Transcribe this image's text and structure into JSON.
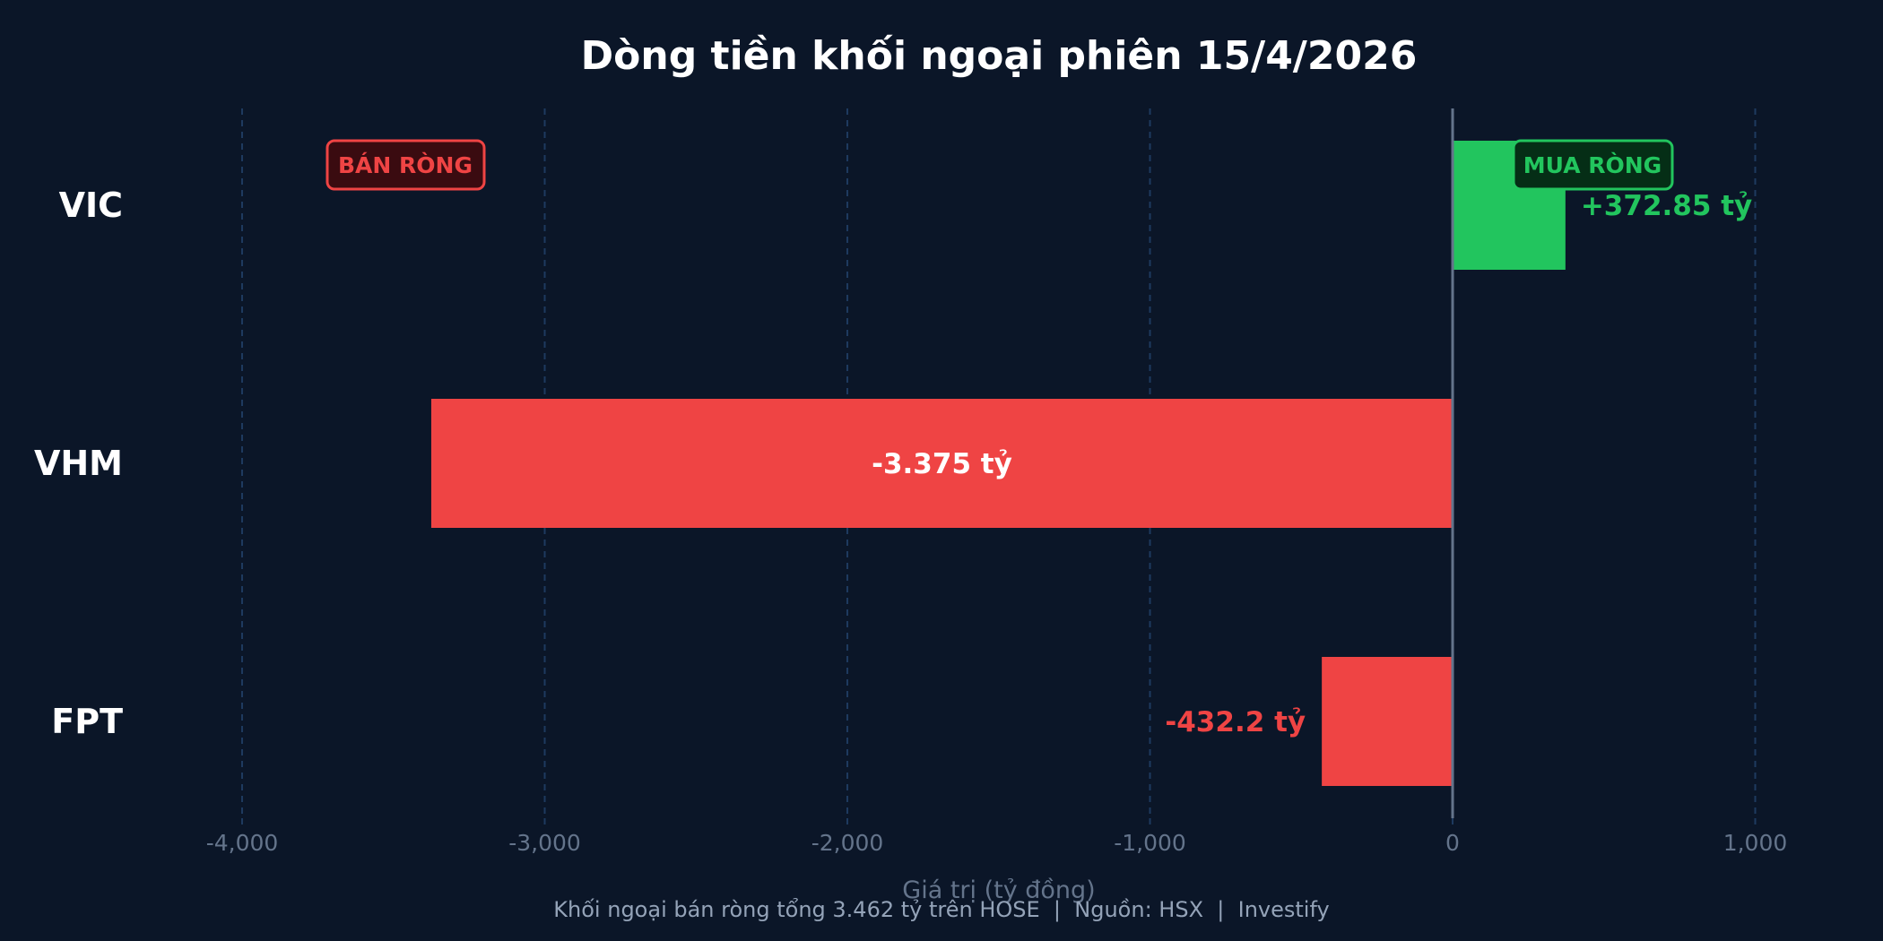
{
  "title": "Dòng tiền khối ngoại phiên 15/4/2026",
  "xlabel": "Giá trị (tỷ đồng)",
  "caption": "Khối ngoại bán ròng tổng 3.462 tỷ trên HOSE  |  Nguồn: HSX  |  Investify",
  "badges": {
    "sell": {
      "label": "BÁN RÒNG",
      "color": "#ef4444",
      "fill": "#3a0b10"
    },
    "buy": {
      "label": "MUA RÒNG",
      "color": "#22c55e",
      "fill": "#052e16"
    }
  },
  "colors": {
    "background": "#0b1628",
    "positive": "#22c55e",
    "negative": "#ef4444",
    "grid": "#1e3a5f",
    "zero_line": "#64748b",
    "tick_text": "#64748b"
  },
  "chart_data": {
    "type": "bar",
    "orientation": "horizontal",
    "title": "Dòng tiền khối ngoại phiên 15/4/2026",
    "xlabel": "Giá trị (tỷ đồng)",
    "ylabel": "",
    "categories": [
      "VIC",
      "VHM",
      "FPT"
    ],
    "values": [
      372.85,
      -3375,
      -432.2
    ],
    "value_labels": [
      "+372.85 tỷ",
      "-3.375 tỷ",
      "-432.2 tỷ"
    ],
    "xlim": [
      -4500,
      1300
    ],
    "xticks": [
      -4000,
      -3000,
      -2000,
      -1000,
      0,
      1000
    ],
    "xtick_labels": [
      "-4,000",
      "-3,000",
      "-2,000",
      "-1,000",
      "0",
      "1,000"
    ],
    "grid": "vertical dashed",
    "annotations": [
      "BÁN RÒNG",
      "MUA RÒNG"
    ],
    "caption": "Khối ngoại bán ròng tổng 3.462 tỷ trên HOSE  |  Nguồn: HSX  |  Investify"
  }
}
